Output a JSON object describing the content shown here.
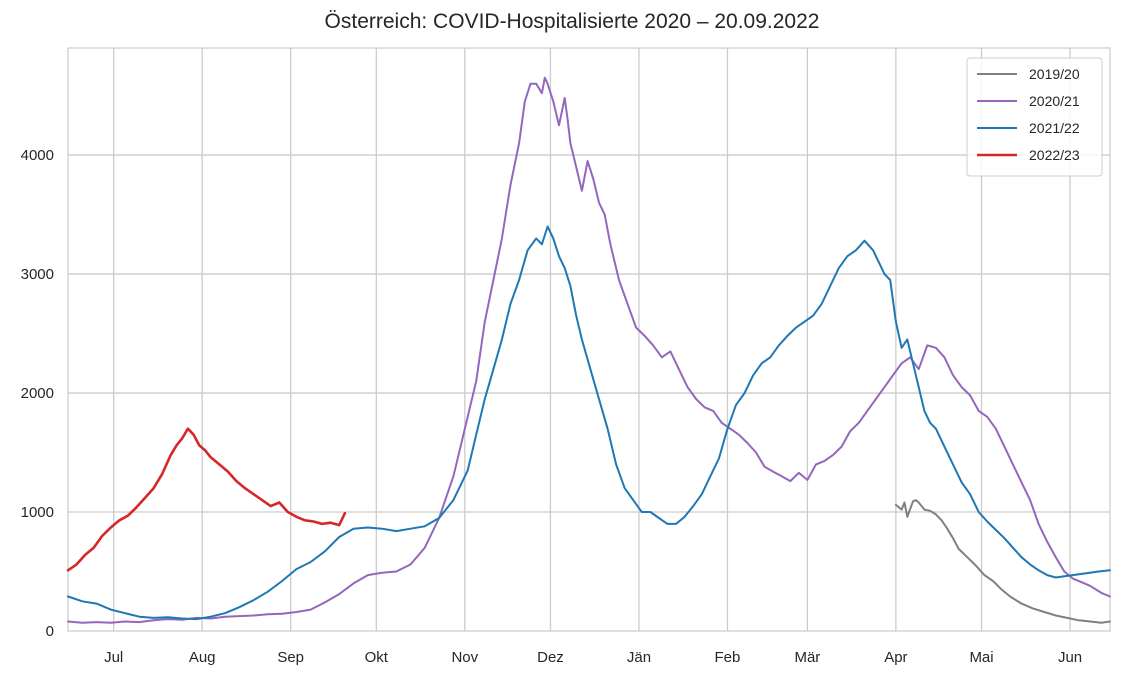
{
  "chart_data": {
    "type": "line",
    "title": "Österreich: COVID-Hospitalisierte 2020 – 20.09.2022",
    "xlabel": "",
    "ylabel": "",
    "x_unit": "days since 15 Jun",
    "xlim": [
      0,
      365
    ],
    "ylim": [
      0,
      4900
    ],
    "yticks": [
      0,
      1000,
      2000,
      3000,
      4000
    ],
    "ytick_labels": [
      "0",
      "1000",
      "2000",
      "3000",
      "4000"
    ],
    "xticks": [
      {
        "label": "Jul",
        "x": 16
      },
      {
        "label": "Aug",
        "x": 47
      },
      {
        "label": "Sep",
        "x": 78
      },
      {
        "label": "Okt",
        "x": 108
      },
      {
        "label": "Nov",
        "x": 139
      },
      {
        "label": "Dez",
        "x": 169
      },
      {
        "label": "Jän",
        "x": 200
      },
      {
        "label": "Feb",
        "x": 231
      },
      {
        "label": "Mär",
        "x": 259
      },
      {
        "label": "Apr",
        "x": 290
      },
      {
        "label": "Mai",
        "x": 320
      },
      {
        "label": "Jun",
        "x": 351
      }
    ],
    "grid": true,
    "legend_position": "top-right",
    "series": [
      {
        "name": "2019/20",
        "color": "#808080",
        "x": [
          290,
          292,
          293,
          294,
          296,
          297,
          298,
          300,
          302,
          304,
          306,
          308,
          310,
          312,
          315,
          318,
          321,
          324,
          327,
          330,
          334,
          338,
          342,
          346,
          350,
          354,
          358,
          362,
          365
        ],
        "values": [
          1060,
          1020,
          1080,
          960,
          1090,
          1100,
          1080,
          1020,
          1010,
          980,
          930,
          860,
          780,
          690,
          620,
          550,
          470,
          420,
          350,
          290,
          230,
          190,
          160,
          130,
          110,
          90,
          80,
          70,
          80
        ]
      },
      {
        "name": "2020/21",
        "color": "#9467bd",
        "x": [
          0,
          5,
          10,
          15,
          20,
          25,
          30,
          35,
          40,
          45,
          50,
          55,
          60,
          65,
          70,
          75,
          80,
          85,
          90,
          95,
          100,
          105,
          110,
          115,
          120,
          125,
          130,
          135,
          140,
          143,
          146,
          149,
          152,
          155,
          158,
          160,
          162,
          164,
          166,
          167,
          168,
          170,
          172,
          174,
          175,
          176,
          178,
          180,
          182,
          184,
          186,
          188,
          190,
          193,
          196,
          199,
          202,
          205,
          208,
          211,
          214,
          217,
          220,
          223,
          226,
          229,
          232,
          235,
          238,
          241,
          244,
          247,
          250,
          253,
          256,
          259,
          262,
          265,
          268,
          271,
          274,
          277,
          280,
          283,
          286,
          289,
          292,
          295,
          298,
          301,
          304,
          307,
          310,
          313,
          316,
          319,
          322,
          325,
          328,
          331,
          334,
          337,
          340,
          343,
          346,
          349,
          352,
          355,
          358,
          362,
          365
        ],
        "values": [
          80,
          70,
          75,
          70,
          80,
          75,
          90,
          100,
          95,
          110,
          105,
          120,
          125,
          130,
          140,
          145,
          160,
          180,
          240,
          310,
          400,
          470,
          490,
          500,
          560,
          700,
          950,
          1300,
          1800,
          2100,
          2600,
          2950,
          3300,
          3750,
          4100,
          4450,
          4600,
          4600,
          4520,
          4650,
          4600,
          4450,
          4250,
          4480,
          4300,
          4100,
          3900,
          3700,
          3950,
          3800,
          3600,
          3500,
          3250,
          2950,
          2750,
          2550,
          2480,
          2400,
          2300,
          2350,
          2200,
          2050,
          1950,
          1880,
          1850,
          1750,
          1700,
          1650,
          1580,
          1500,
          1380,
          1340,
          1300,
          1260,
          1330,
          1270,
          1400,
          1430,
          1480,
          1550,
          1680,
          1750,
          1850,
          1950,
          2050,
          2150,
          2250,
          2300,
          2200,
          2400,
          2380,
          2300,
          2150,
          2050,
          1980,
          1850,
          1800,
          1700,
          1550,
          1400,
          1250,
          1100,
          900,
          750,
          620,
          500,
          440,
          410,
          380,
          320,
          290
        ]
      },
      {
        "name": "2021/22",
        "color": "#1f77b4",
        "x": [
          0,
          5,
          10,
          15,
          20,
          25,
          30,
          35,
          40,
          45,
          50,
          55,
          60,
          65,
          70,
          75,
          80,
          85,
          90,
          95,
          100,
          105,
          110,
          115,
          120,
          125,
          130,
          135,
          140,
          143,
          146,
          149,
          152,
          155,
          158,
          161,
          164,
          166,
          168,
          170,
          172,
          174,
          176,
          178,
          180,
          183,
          186,
          189,
          192,
          195,
          198,
          201,
          204,
          207,
          210,
          213,
          216,
          219,
          222,
          225,
          228,
          231,
          234,
          237,
          240,
          243,
          246,
          249,
          252,
          255,
          258,
          261,
          264,
          267,
          270,
          273,
          276,
          279,
          282,
          284,
          286,
          288,
          290,
          292,
          294,
          296,
          298,
          300,
          302,
          304,
          307,
          310,
          313,
          316,
          319,
          322,
          325,
          328,
          331,
          334,
          337,
          340,
          343,
          346,
          349,
          352,
          355,
          358,
          361,
          365
        ],
        "values": [
          290,
          250,
          230,
          180,
          150,
          120,
          110,
          115,
          105,
          100,
          120,
          150,
          200,
          260,
          330,
          420,
          520,
          580,
          670,
          790,
          860,
          870,
          860,
          840,
          860,
          880,
          950,
          1100,
          1350,
          1650,
          1950,
          2200,
          2450,
          2750,
          2950,
          3200,
          3300,
          3250,
          3400,
          3300,
          3150,
          3050,
          2900,
          2650,
          2450,
          2200,
          1950,
          1700,
          1400,
          1200,
          1100,
          1000,
          1000,
          950,
          900,
          900,
          960,
          1050,
          1150,
          1300,
          1450,
          1700,
          1900,
          2000,
          2150,
          2250,
          2300,
          2400,
          2480,
          2550,
          2600,
          2650,
          2750,
          2900,
          3050,
          3150,
          3200,
          3280,
          3200,
          3100,
          3000,
          2950,
          2600,
          2380,
          2450,
          2250,
          2050,
          1850,
          1750,
          1700,
          1550,
          1400,
          1250,
          1150,
          1000,
          920,
          850,
          780,
          700,
          620,
          560,
          510,
          470,
          450,
          460,
          470,
          480,
          490,
          500,
          510
        ]
      },
      {
        "name": "2022/23",
        "color": "#d62728",
        "x": [
          0,
          3,
          6,
          9,
          12,
          15,
          18,
          21,
          24,
          27,
          30,
          33,
          36,
          38,
          40,
          42,
          44,
          46,
          48,
          50,
          53,
          56,
          59,
          62,
          65,
          68,
          71,
          74,
          77,
          80,
          83,
          86,
          89,
          92,
          95,
          97
        ],
        "values": [
          510,
          560,
          640,
          700,
          800,
          870,
          930,
          970,
          1040,
          1120,
          1200,
          1320,
          1480,
          1560,
          1620,
          1700,
          1650,
          1560,
          1520,
          1460,
          1400,
          1340,
          1260,
          1200,
          1150,
          1100,
          1050,
          1080,
          1000,
          960,
          930,
          920,
          900,
          910,
          890,
          990
        ]
      }
    ]
  }
}
